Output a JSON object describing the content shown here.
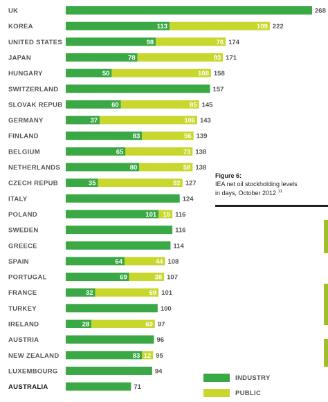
{
  "colors": {
    "industry": "#3aa845",
    "public": "#c8d72e",
    "caption_rule": "#222222"
  },
  "caption": {
    "title": "Figure 6:",
    "line1": "IEA net oil stockholding levels",
    "line2": "in days, October 2012",
    "note_mark": "11"
  },
  "legend": [
    {
      "key": "industry",
      "label": "INDUSTRY"
    },
    {
      "key": "public",
      "label": "PUBLIC"
    }
  ],
  "chart_data": {
    "type": "bar",
    "orientation": "horizontal",
    "stacked": true,
    "categories": [
      "UK",
      "KOREA",
      "UNITED STATES",
      "JAPAN",
      "HUNGARY",
      "SWITZERLAND",
      "SLOVAK REPUB",
      "GERMANY",
      "FINLAND",
      "BELGIUM",
      "NETHERLANDS",
      "CZECH REPUB",
      "ITALY",
      "POLAND",
      "SWEDEN",
      "GREECE",
      "SPAIN",
      "PORTUGAL",
      "FRANCE",
      "TURKEY",
      "IRELAND",
      "AUSTRIA",
      "NEW ZEALAND",
      "LUXEMBOURG",
      "AUSTRALIA"
    ],
    "highlight": "AUSTRALIA",
    "series": [
      {
        "name": "INDUSTRY",
        "values": [
          268,
          113,
          98,
          78,
          50,
          157,
          60,
          37,
          83,
          65,
          80,
          35,
          124,
          101,
          116,
          114,
          64,
          69,
          32,
          100,
          28,
          96,
          83,
          94,
          71
        ]
      },
      {
        "name": "PUBLIC",
        "values": [
          0,
          109,
          76,
          93,
          108,
          0,
          85,
          106,
          56,
          73,
          58,
          92,
          0,
          15,
          0,
          0,
          44,
          38,
          69,
          0,
          69,
          0,
          12,
          0,
          0
        ]
      }
    ],
    "totals": [
      268,
      222,
      174,
      171,
      158,
      157,
      145,
      143,
      139,
      138,
      138,
      127,
      124,
      116,
      116,
      114,
      108,
      107,
      101,
      100,
      97,
      96,
      95,
      94,
      71
    ],
    "segment_labels_shown": [
      false,
      true,
      true,
      true,
      true,
      false,
      true,
      true,
      true,
      true,
      true,
      true,
      false,
      true,
      false,
      false,
      true,
      true,
      true,
      false,
      true,
      false,
      true,
      false,
      false
    ],
    "xlim": [
      0,
      268
    ],
    "grid": false
  }
}
